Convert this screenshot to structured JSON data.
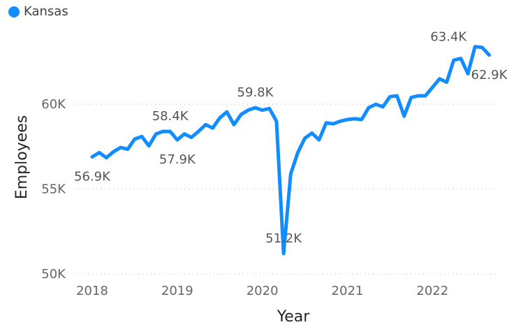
{
  "chart_data": {
    "type": "line",
    "xlabel": "Year",
    "ylabel": "Employees",
    "ylim": [
      50000,
      64500
    ],
    "xlim": [
      2018,
      2022.72
    ],
    "yticks": [
      {
        "value": 50000,
        "label": "50K"
      },
      {
        "value": 55000,
        "label": "55K"
      },
      {
        "value": 60000,
        "label": "60K"
      }
    ],
    "xticks": [
      {
        "value": 2018,
        "label": "2018"
      },
      {
        "value": 2019,
        "label": "2019"
      },
      {
        "value": 2020,
        "label": "2020"
      },
      {
        "value": 2021,
        "label": "2021"
      },
      {
        "value": 2022,
        "label": "2022"
      }
    ],
    "grid": true,
    "legend": {
      "position": "top-left"
    },
    "series": [
      {
        "name": "Kansas",
        "color": "#118DFF",
        "start_year": 2018,
        "start_month": 1,
        "values": [
          56900,
          57150,
          56850,
          57200,
          57450,
          57350,
          57950,
          58100,
          57550,
          58250,
          58400,
          58400,
          57900,
          58250,
          58050,
          58400,
          58800,
          58600,
          59200,
          59550,
          58800,
          59400,
          59650,
          59800,
          59650,
          59750,
          59000,
          51200,
          55900,
          57150,
          58000,
          58300,
          57900,
          58900,
          58850,
          59000,
          59100,
          59150,
          59100,
          59800,
          60000,
          59850,
          60450,
          60500,
          59300,
          60400,
          60500,
          60500,
          61000,
          61500,
          61300,
          62600,
          62700,
          61800,
          63400,
          63350,
          62900
        ]
      }
    ],
    "data_labels": [
      {
        "x": "2018-01",
        "text": "56.9K",
        "position": "below"
      },
      {
        "x": "2018-12",
        "text": "58.4K",
        "position": "above"
      },
      {
        "x": "2019-01",
        "text": "57.9K",
        "position": "below"
      },
      {
        "x": "2019-12",
        "text": "59.8K",
        "position": "above"
      },
      {
        "x": "2020-04",
        "text": "51.2K",
        "position": "above"
      },
      {
        "x": "2022-07",
        "text": "63.4K",
        "position": "left"
      },
      {
        "x": "2022-09",
        "text": "62.9K",
        "position": "below"
      }
    ]
  }
}
